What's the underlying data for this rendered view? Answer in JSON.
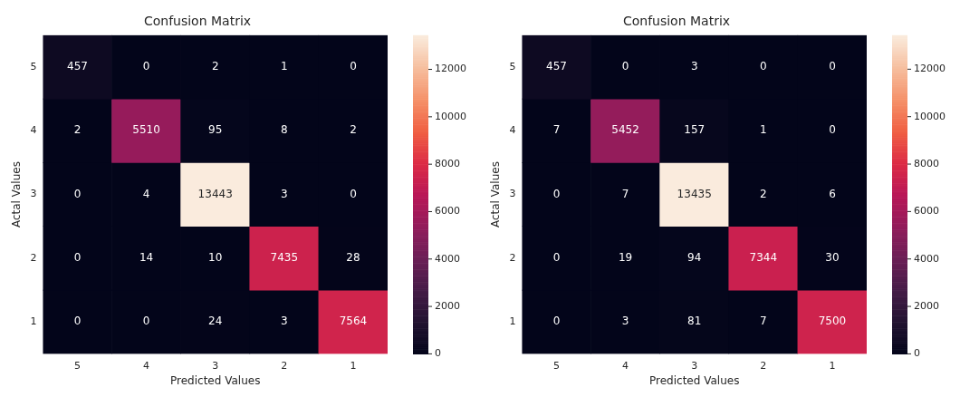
{
  "chart_data": [
    {
      "type": "heatmap",
      "title": "Confusion Matrix",
      "xlabel": "Predicted Values",
      "ylabel": "Actal Values",
      "categories": [
        "5",
        "4",
        "3",
        "2",
        "1"
      ],
      "y_categories": [
        "5",
        "4",
        "3",
        "2",
        "1"
      ],
      "cells": [
        [
          457,
          0,
          2,
          1,
          0
        ],
        [
          2,
          5510,
          95,
          8,
          2
        ],
        [
          0,
          4,
          13443,
          3,
          0
        ],
        [
          0,
          14,
          10,
          7435,
          28
        ],
        [
          0,
          0,
          24,
          3,
          7564
        ]
      ],
      "data_labels": true,
      "clim": [
        0,
        13443
      ],
      "cticks": [
        0,
        2000,
        4000,
        6000,
        8000,
        10000,
        12000
      ]
    },
    {
      "type": "heatmap",
      "title": "Confusion Matrix",
      "xlabel": "Predicted Values",
      "ylabel": "Actal Values",
      "categories": [
        "5",
        "4",
        "3",
        "2",
        "1"
      ],
      "y_categories": [
        "5",
        "4",
        "3",
        "2",
        "1"
      ],
      "cells": [
        [
          457,
          0,
          3,
          0,
          0
        ],
        [
          7,
          5452,
          157,
          1,
          0
        ],
        [
          0,
          7,
          13435,
          2,
          6
        ],
        [
          0,
          19,
          94,
          7344,
          30
        ],
        [
          0,
          3,
          81,
          7,
          7500
        ]
      ],
      "data_labels": true,
      "clim": [
        0,
        13435
      ],
      "cticks": [
        0,
        2000,
        4000,
        6000,
        8000,
        10000,
        12000
      ]
    }
  ]
}
